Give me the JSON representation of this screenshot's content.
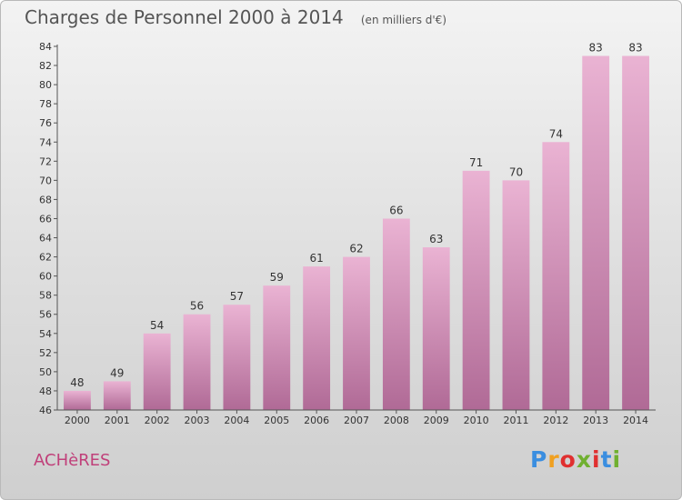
{
  "header": {
    "title": "Charges de Personnel 2000 à 2014",
    "unit": "(en milliers d'€)"
  },
  "footer": {
    "city": "ACHèRES",
    "logo_letters": [
      "P",
      "r",
      "o",
      "x",
      "i",
      "t",
      "i"
    ],
    "logo_colors": [
      "#3a8ee0",
      "#f0a020",
      "#e03030",
      "#70b030",
      "#e03030",
      "#3a8ee0",
      "#70b030"
    ]
  },
  "colors": {
    "bar_light": "#eab3d3",
    "bar_dark": "#b06a96",
    "axis": "#555555"
  },
  "chart_data": {
    "type": "bar",
    "title": "Charges de Personnel 2000 à 2014",
    "subtitle": "(en milliers d'€)",
    "xlabel": "",
    "ylabel": "",
    "categories": [
      "2000",
      "2001",
      "2002",
      "2003",
      "2004",
      "2005",
      "2006",
      "2007",
      "2008",
      "2009",
      "2010",
      "2011",
      "2012",
      "2013",
      "2014"
    ],
    "values": [
      48,
      49,
      54,
      56,
      57,
      59,
      61,
      62,
      66,
      63,
      71,
      70,
      74,
      83,
      83
    ],
    "data_labels": [
      "48",
      "49",
      "54",
      "56",
      "57",
      "59",
      "61",
      "62",
      "66",
      "63",
      "71",
      "70",
      "74",
      "83",
      "83"
    ],
    "ylim": [
      46,
      84
    ],
    "yticks": [
      46,
      48,
      50,
      52,
      54,
      56,
      58,
      60,
      62,
      64,
      66,
      68,
      70,
      72,
      74,
      76,
      78,
      80,
      82,
      84
    ],
    "ytick_labels": [
      "46",
      "48",
      "50",
      "52",
      "54",
      "56",
      "58",
      "60",
      "62",
      "64",
      "66",
      "68",
      "70",
      "72",
      "74",
      "76",
      "78",
      "80",
      "82",
      "84"
    ],
    "grid": false,
    "legend": "none"
  }
}
